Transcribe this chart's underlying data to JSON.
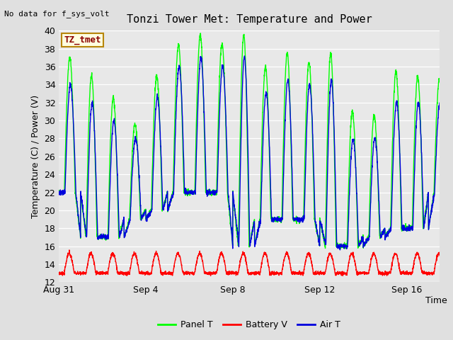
{
  "title": "Tonzi Tower Met: Temperature and Power",
  "no_data_label": "No data for f_sys_volt",
  "tz_label": "TZ_tmet",
  "ylabel": "Temperature (C) / Power (V)",
  "xlabel": "Time",
  "ylim": [
    12,
    40
  ],
  "yticks": [
    12,
    14,
    16,
    18,
    20,
    22,
    24,
    26,
    28,
    30,
    32,
    34,
    36,
    38,
    40
  ],
  "xtick_positions": [
    0,
    4,
    8,
    12,
    16
  ],
  "xtick_labels": [
    "Aug 31",
    "Sep 4",
    "Sep 8",
    "Sep 12",
    "Sep 16"
  ],
  "bg_color": "#e8e8e8",
  "fig_bg_color": "#e0e0e0",
  "panel_t_color": "#00ff00",
  "battery_v_color": "#ff0000",
  "air_t_color": "#0000dd",
  "legend_labels": [
    "Panel T",
    "Battery V",
    "Air T"
  ],
  "n_days": 18,
  "n_pts_per_day": 144,
  "xlim_end": 17.5
}
